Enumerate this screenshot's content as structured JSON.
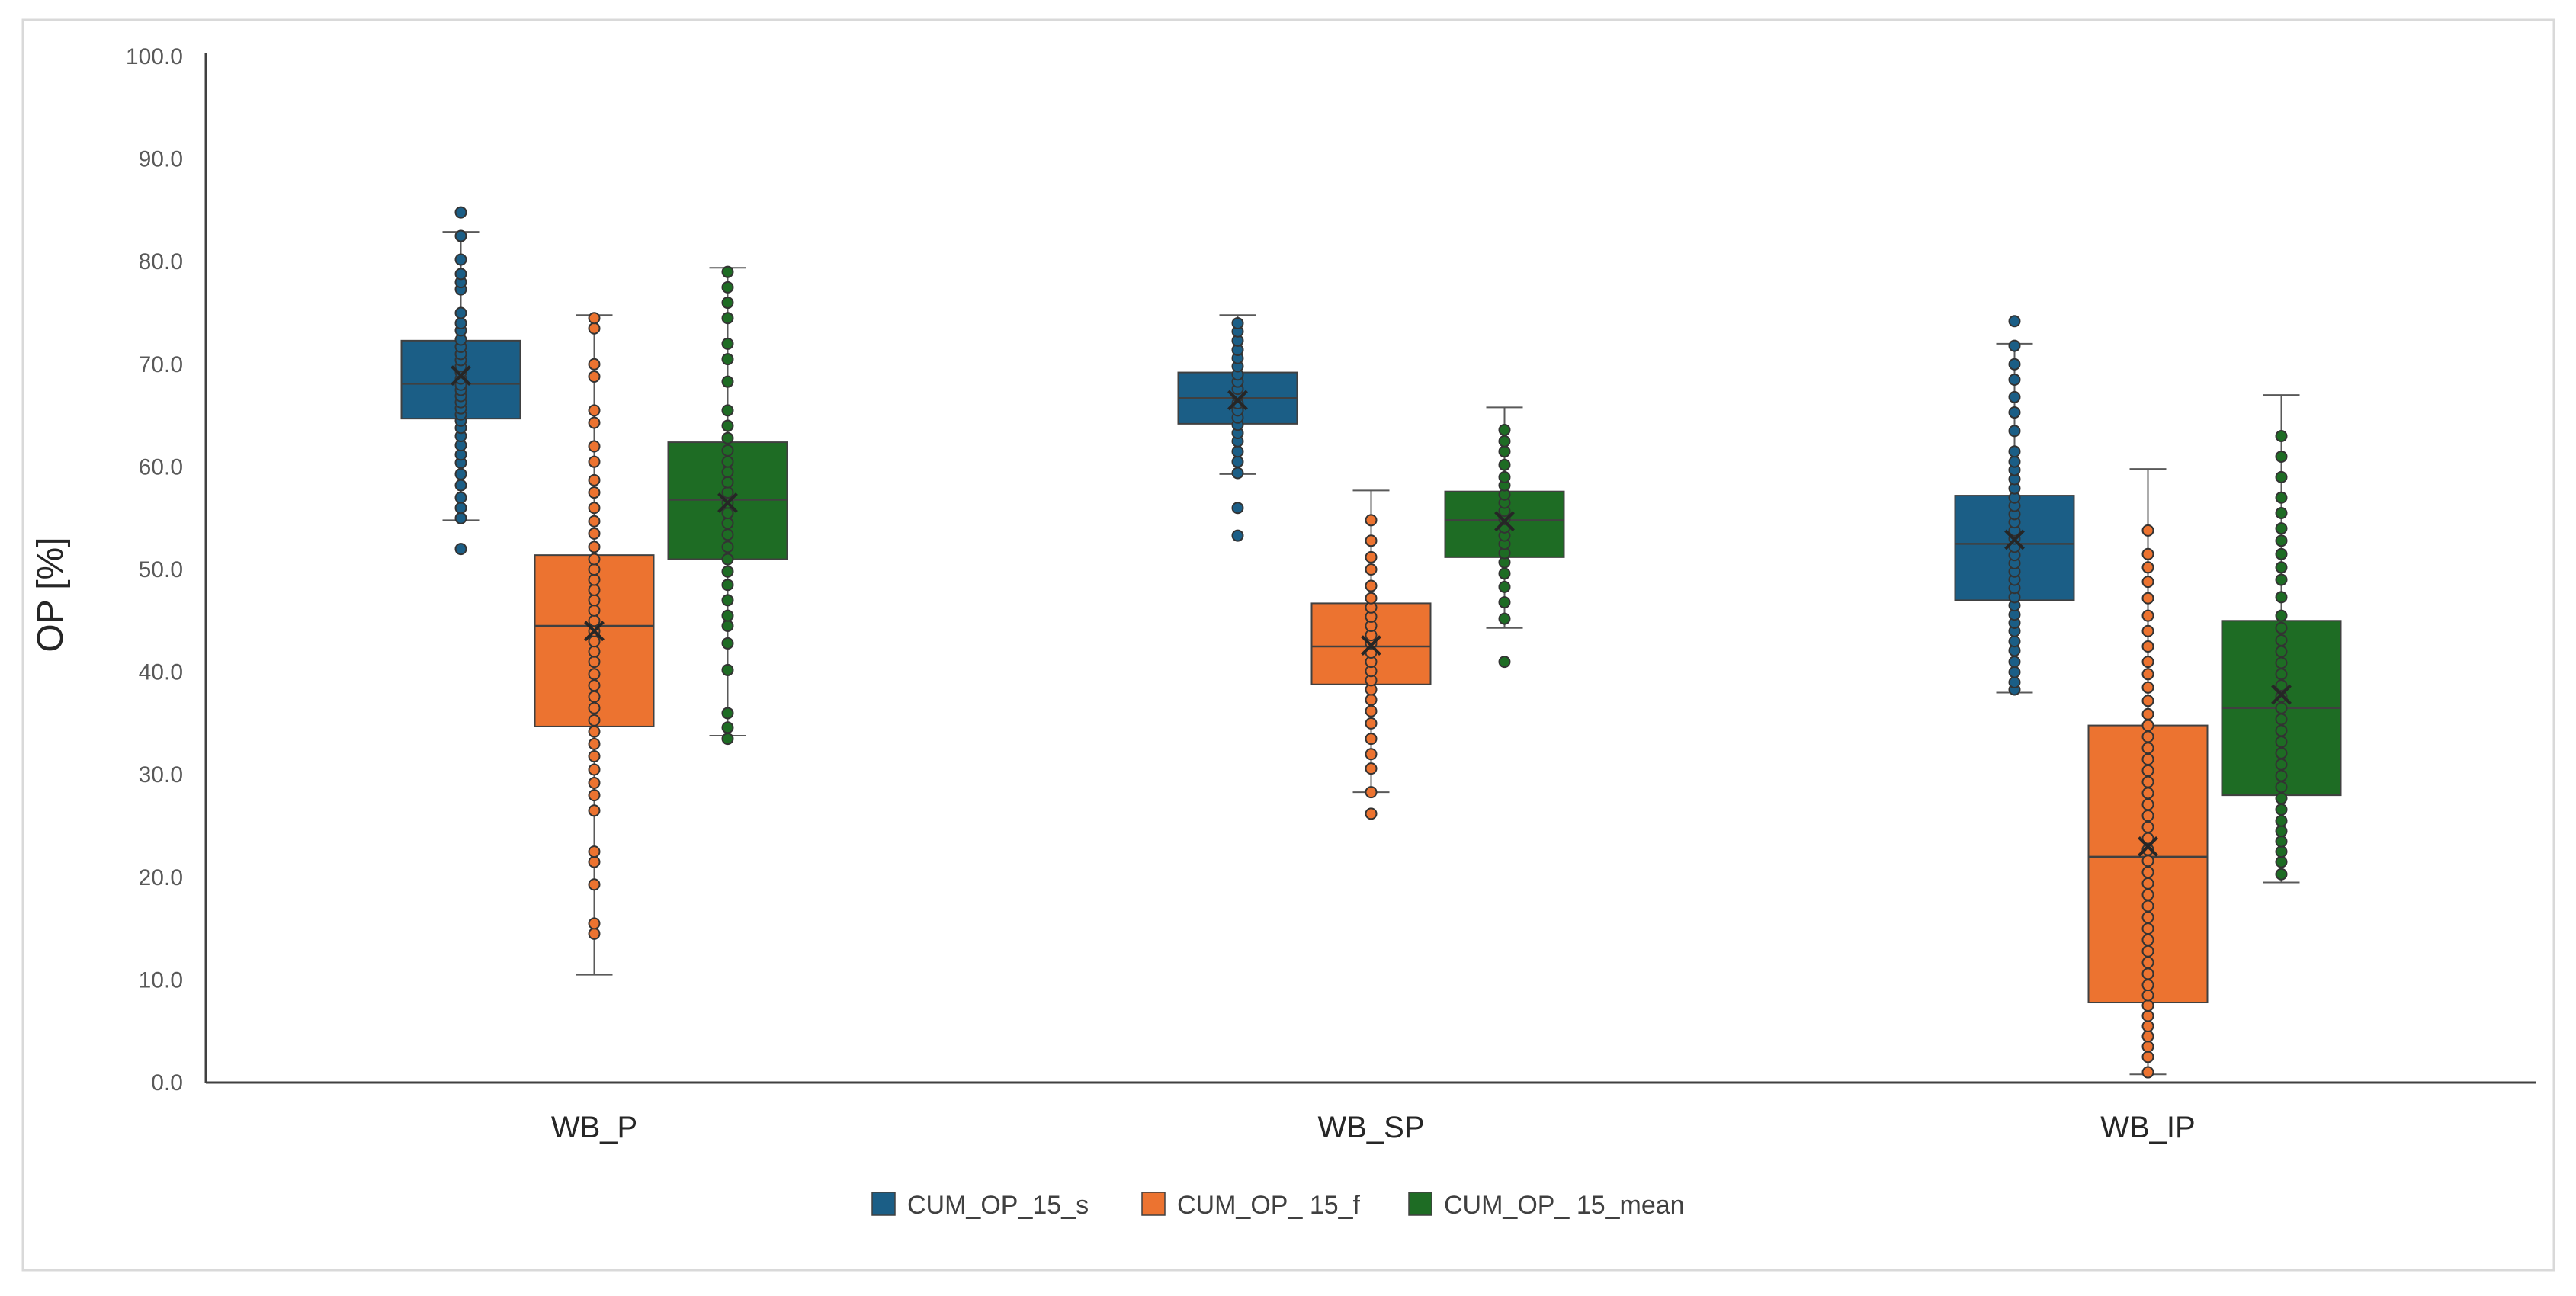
{
  "chart_data": {
    "type": "box",
    "title": "",
    "xlabel": "",
    "ylabel": "OP [%]",
    "ylim": [
      0,
      100
    ],
    "yticks": [
      "0.0",
      "10.0",
      "20.0",
      "30.0",
      "40.0",
      "50.0",
      "60.0",
      "70.0",
      "80.0",
      "90.0",
      "100.0"
    ],
    "ytick_values": [
      0,
      10,
      20,
      30,
      40,
      50,
      60,
      70,
      80,
      90,
      100
    ],
    "categories": [
      "WB_P",
      "WB_SP",
      "WB_IP"
    ],
    "legend_position": "bottom-center",
    "series": [
      {
        "name": "CUM_OP_15_s",
        "color": "#1b5e86",
        "boxes": [
          {
            "min": 54.8,
            "q1": 64.7,
            "median": 68.1,
            "q3": 72.3,
            "max": 82.9,
            "mean": 68.9,
            "points": [
              52.0,
              55.0,
              56.0,
              57.0,
              58.2,
              59.3,
              60.4,
              61.2,
              62.1,
              63.0,
              63.8,
              64.5,
              65.1,
              65.7,
              66.3,
              66.9,
              67.5,
              68.0,
              68.6,
              69.2,
              69.8,
              70.4,
              71.0,
              71.7,
              72.4,
              73.3,
              74.0,
              75.0,
              77.3,
              78.0,
              78.8,
              80.2,
              82.5,
              84.8
            ]
          },
          {
            "min": 59.3,
            "q1": 64.2,
            "median": 66.7,
            "q3": 69.2,
            "max": 74.8,
            "mean": 66.5,
            "points": [
              53.3,
              56.0,
              59.4,
              60.5,
              61.5,
              62.5,
              63.3,
              64.1,
              64.8,
              65.5,
              66.2,
              66.9,
              67.6,
              68.3,
              69.0,
              69.8,
              70.6,
              71.4,
              72.3,
              73.2,
              74.0
            ]
          },
          {
            "min": 38.0,
            "q1": 47.0,
            "median": 52.5,
            "q3": 57.2,
            "max": 72.0,
            "mean": 52.9,
            "points": [
              38.3,
              39.0,
              40.0,
              41.0,
              42.1,
              43.0,
              44.0,
              44.8,
              45.6,
              46.5,
              47.3,
              48.2,
              49.0,
              49.8,
              50.6,
              51.4,
              52.2,
              53.0,
              53.8,
              54.6,
              55.4,
              56.2,
              57.0,
              57.9,
              58.8,
              59.7,
              60.5,
              61.5,
              63.5,
              65.3,
              66.8,
              68.5,
              70.0,
              71.8,
              74.2
            ]
          }
        ]
      },
      {
        "name": "CUM_OP_ 15_f",
        "color": "#ec7330",
        "boxes": [
          {
            "min": 10.5,
            "q1": 34.7,
            "median": 44.5,
            "q3": 51.4,
            "max": 74.8,
            "mean": 44.0,
            "points": [
              14.5,
              15.5,
              19.3,
              21.5,
              22.5,
              26.5,
              28.0,
              29.2,
              30.5,
              31.8,
              33.0,
              34.2,
              35.3,
              36.5,
              37.6,
              38.7,
              39.8,
              41.0,
              42.0,
              43.0,
              44.0,
              45.0,
              46.0,
              47.0,
              48.0,
              49.0,
              50.0,
              51.0,
              52.2,
              53.5,
              54.7,
              56.0,
              57.5,
              58.7,
              60.5,
              62.0,
              64.3,
              65.5,
              68.8,
              70.0,
              73.5,
              74.5
            ]
          },
          {
            "min": 28.3,
            "q1": 38.8,
            "median": 42.5,
            "q3": 46.7,
            "max": 57.7,
            "mean": 42.6,
            "points": [
              26.2,
              28.3,
              30.6,
              32.0,
              33.5,
              35.0,
              36.2,
              37.3,
              38.3,
              39.2,
              40.1,
              41.0,
              41.9,
              42.8,
              43.6,
              44.5,
              45.4,
              46.3,
              47.2,
              48.4,
              50.0,
              51.2,
              52.8,
              54.8
            ]
          },
          {
            "min": 0.8,
            "q1": 7.8,
            "median": 22.0,
            "q3": 34.8,
            "max": 59.8,
            "mean": 23.0,
            "points": [
              1.0,
              2.5,
              3.5,
              4.5,
              5.5,
              6.5,
              7.5,
              8.5,
              9.5,
              10.6,
              11.7,
              12.8,
              13.9,
              15.0,
              16.1,
              17.2,
              18.3,
              19.4,
              20.5,
              21.6,
              22.7,
              23.8,
              24.9,
              26.0,
              27.1,
              28.2,
              29.3,
              30.4,
              31.5,
              32.6,
              33.7,
              34.8,
              35.9,
              37.2,
              38.5,
              39.8,
              41.0,
              42.5,
              44.0,
              45.5,
              47.2,
              48.8,
              50.2,
              51.5,
              53.8
            ]
          }
        ]
      },
      {
        "name": "CUM_OP_ 15_mean",
        "color": "#1e6c24",
        "boxes": [
          {
            "min": 33.8,
            "q1": 51.0,
            "median": 56.8,
            "q3": 62.4,
            "max": 79.4,
            "mean": 56.5,
            "points": [
              33.5,
              34.6,
              36.0,
              40.2,
              42.8,
              44.5,
              45.5,
              47.0,
              48.5,
              49.8,
              51.0,
              52.2,
              53.4,
              54.5,
              55.5,
              56.5,
              57.5,
              58.5,
              59.5,
              60.5,
              61.6,
              62.8,
              64.0,
              65.5,
              68.3,
              70.5,
              72.0,
              74.5,
              76.0,
              77.5,
              79.0
            ]
          },
          {
            "min": 44.3,
            "q1": 51.2,
            "median": 54.8,
            "q3": 57.6,
            "max": 65.8,
            "mean": 54.7,
            "points": [
              41.0,
              45.2,
              46.8,
              48.3,
              49.6,
              50.7,
              51.6,
              52.5,
              53.3,
              54.1,
              54.9,
              55.7,
              56.5,
              57.3,
              58.2,
              59.0,
              60.2,
              61.5,
              62.5,
              63.6
            ]
          },
          {
            "min": 19.5,
            "q1": 28.0,
            "median": 36.5,
            "q3": 45.0,
            "max": 67.0,
            "mean": 37.8,
            "points": [
              20.3,
              21.5,
              22.5,
              23.5,
              24.5,
              25.5,
              26.6,
              27.7,
              28.8,
              29.9,
              31.0,
              32.1,
              33.2,
              34.3,
              35.4,
              36.5,
              37.6,
              38.7,
              39.8,
              40.9,
              42.0,
              43.1,
              44.3,
              45.5,
              47.3,
              49.0,
              50.2,
              51.5,
              52.8,
              54.0,
              55.5,
              57.0,
              59.0,
              61.0,
              63.0
            ]
          }
        ]
      }
    ]
  }
}
